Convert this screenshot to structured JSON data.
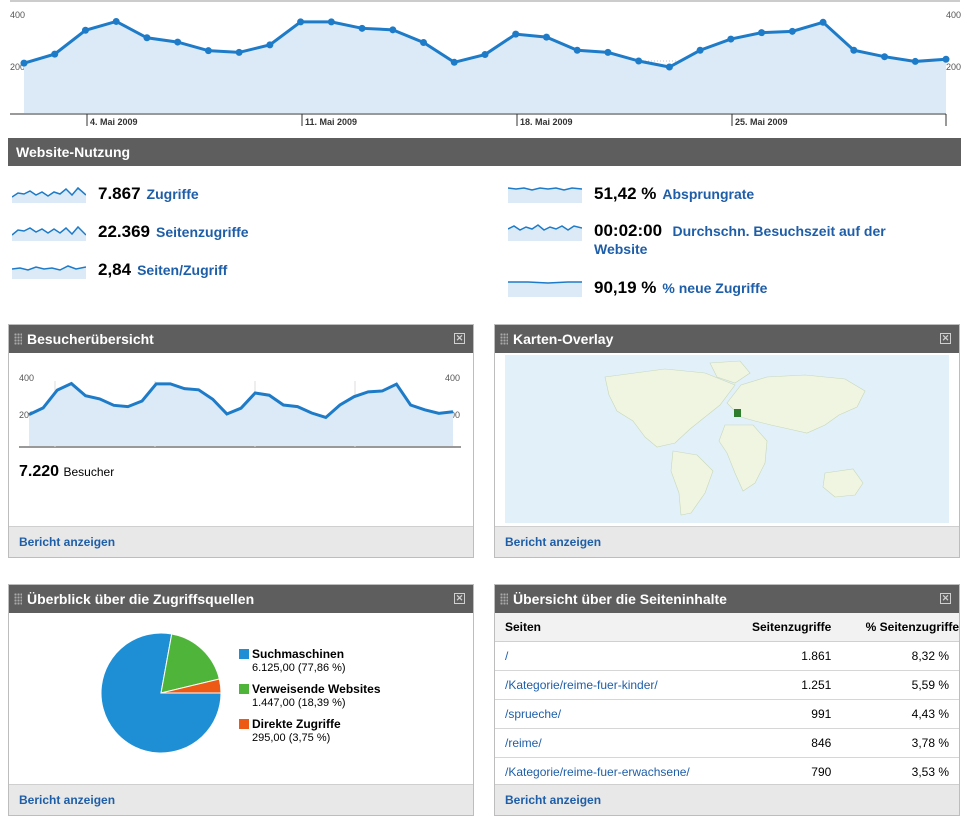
{
  "top_chart": {
    "y_ticks": [
      "400",
      "200"
    ],
    "x_labels": [
      "4. Mai 2009",
      "11. Mai 2009",
      "18. Mai 2009",
      "25. Mai 2009"
    ],
    "series": [
      190,
      232,
      343,
      384,
      308,
      288,
      248,
      240,
      275,
      382,
      382,
      352,
      345,
      286,
      194,
      230,
      325,
      311,
      250,
      240,
      200,
      172,
      250,
      302,
      332,
      338,
      380,
      250,
      220,
      198,
      208
    ]
  },
  "usage": {
    "title": "Website-Nutzung",
    "metrics": [
      {
        "value": "7.867",
        "label": "Zugriffe"
      },
      {
        "value": "22.369",
        "label": "Seitenzugriffe"
      },
      {
        "value": "2,84",
        "label": "Seiten/Zugriff"
      },
      {
        "value": "51,42 %",
        "label": "Absprungrate"
      },
      {
        "value": "00:02:00",
        "label": "Durchschn. Besuchszeit auf der",
        "label2": "Website"
      },
      {
        "value": "90,19 %",
        "label": "% neue Zugriffe"
      }
    ]
  },
  "visitors": {
    "title": "Besucherübersicht",
    "y_ticks": [
      "400",
      "200"
    ],
    "series": [
      190,
      232,
      343,
      384,
      308,
      288,
      248,
      240,
      275,
      382,
      382,
      352,
      345,
      286,
      194,
      230,
      325,
      311,
      250,
      240,
      200,
      172,
      250,
      302,
      332,
      338,
      380,
      250,
      220,
      198,
      208
    ],
    "total": "7.220",
    "total_label": "Besucher",
    "footer": "Bericht anzeigen"
  },
  "map": {
    "title": "Karten-Overlay",
    "footer": "Bericht anzeigen",
    "colors": {
      "ocean": "#e1f0f9",
      "land": "#f0f5e2",
      "highlight": "#2e7d2e"
    }
  },
  "sources": {
    "title": "Überblick über die Zugriffsquellen",
    "footer": "Bericht anzeigen",
    "chart_data": {
      "type": "pie",
      "slices": [
        {
          "name": "Suchmaschinen",
          "value": 6125.0,
          "display": "6.125,00 (77,86 %)",
          "color": "#1e8fd4"
        },
        {
          "name": "Verweisende Websites",
          "value": 1447.0,
          "display": "1.447,00 (18,39 %)",
          "color": "#4eb53a"
        },
        {
          "name": "Direkte Zugriffe",
          "value": 295.0,
          "display": "295,00 (3,75 %)",
          "color": "#ec5a16"
        }
      ]
    }
  },
  "content": {
    "title": "Übersicht über die Seiteninhalte",
    "columns": [
      "Seiten",
      "Seitenzugriffe",
      "% Seitenzugriffe"
    ],
    "rows": [
      {
        "page": "/",
        "views": "1.861",
        "pct": "8,32 %"
      },
      {
        "page": "/Kategorie/reime-fuer-kinder/",
        "views": "1.251",
        "pct": "5,59 %"
      },
      {
        "page": "/sprueche/",
        "views": "991",
        "pct": "4,43 %"
      },
      {
        "page": "/reime/",
        "views": "846",
        "pct": "3,78 %"
      },
      {
        "page": "/Kategorie/reime-fuer-erwachsene/",
        "views": "790",
        "pct": "3,53 %"
      }
    ],
    "footer": "Bericht anzeigen"
  },
  "colors": {
    "accent": "#1e7bc8",
    "fill": "#dbeaf6",
    "header": "#5e5e5e",
    "link": "#1e5ea8"
  }
}
